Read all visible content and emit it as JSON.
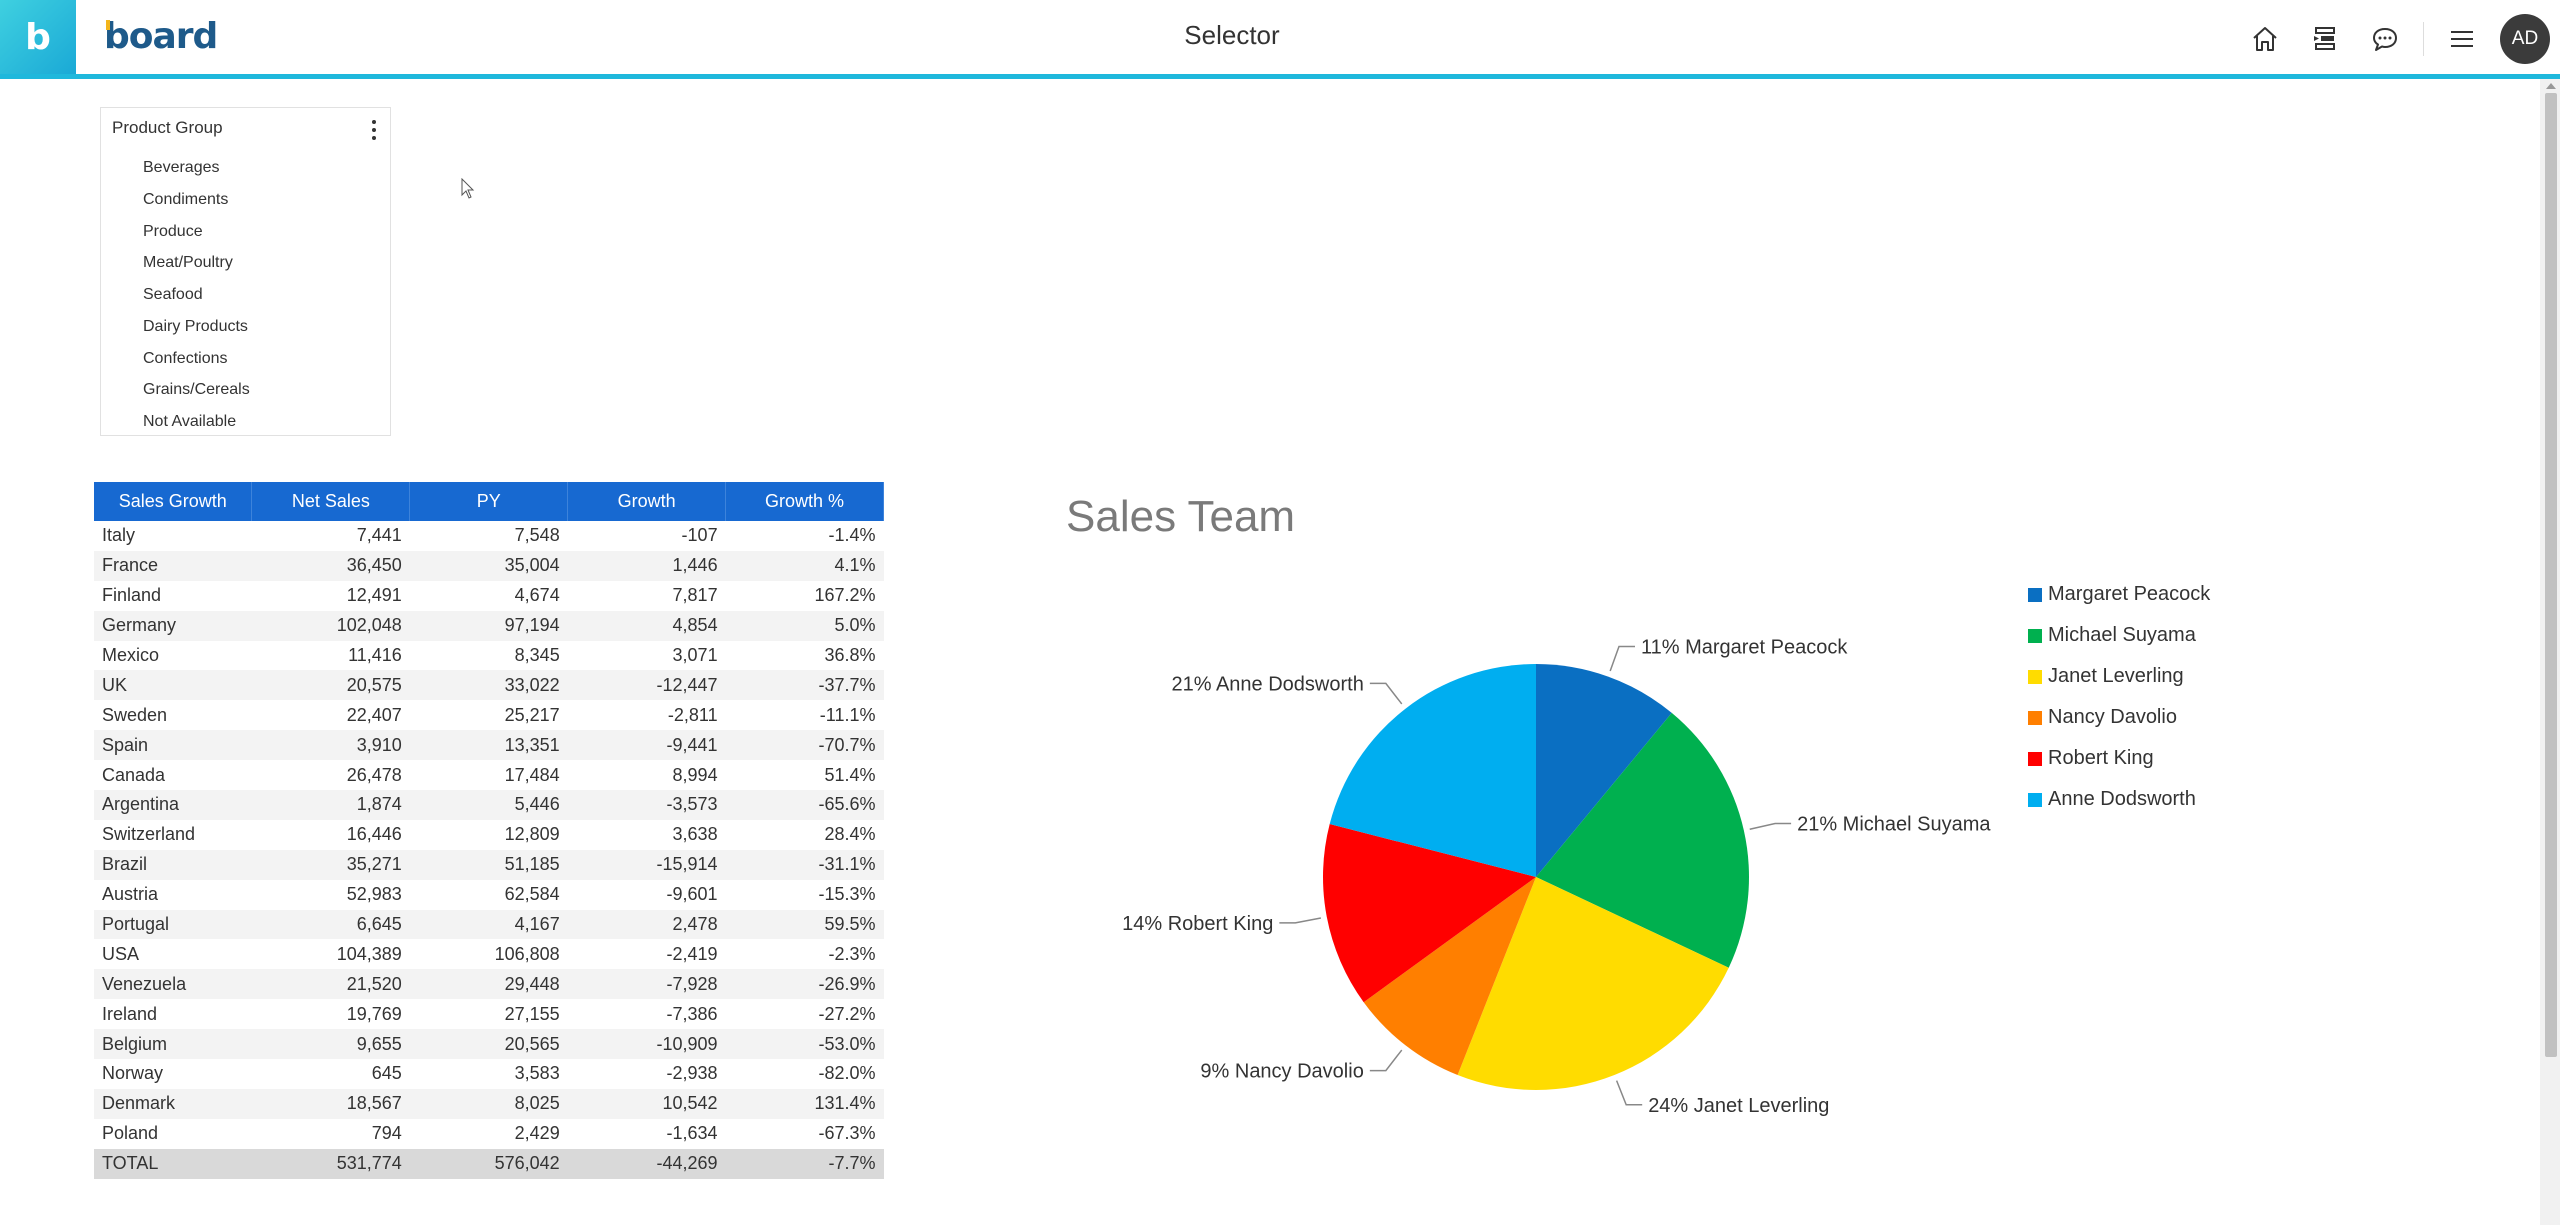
{
  "header": {
    "app_badge": "b",
    "brand": "board",
    "title": "Selector",
    "icons": [
      "home-icon",
      "layout-icon",
      "chat-icon",
      "menu-icon"
    ],
    "avatar_initials": "AD"
  },
  "selector": {
    "title": "Product Group",
    "items": [
      "Beverages",
      "Condiments",
      "Produce",
      "Meat/Poultry",
      "Seafood",
      "Dairy Products",
      "Confections",
      "Grains/Cereals",
      "Not Available"
    ]
  },
  "table": {
    "headers": [
      "Sales Growth",
      "Net Sales",
      "PY",
      "Growth",
      "Growth %"
    ],
    "rows": [
      [
        "Italy",
        "7,441",
        "7,548",
        "-107",
        "-1.4%"
      ],
      [
        "France",
        "36,450",
        "35,004",
        "1,446",
        "4.1%"
      ],
      [
        "Finland",
        "12,491",
        "4,674",
        "7,817",
        "167.2%"
      ],
      [
        "Germany",
        "102,048",
        "97,194",
        "4,854",
        "5.0%"
      ],
      [
        "Mexico",
        "11,416",
        "8,345",
        "3,071",
        "36.8%"
      ],
      [
        "UK",
        "20,575",
        "33,022",
        "-12,447",
        "-37.7%"
      ],
      [
        "Sweden",
        "22,407",
        "25,217",
        "-2,811",
        "-11.1%"
      ],
      [
        "Spain",
        "3,910",
        "13,351",
        "-9,441",
        "-70.7%"
      ],
      [
        "Canada",
        "26,478",
        "17,484",
        "8,994",
        "51.4%"
      ],
      [
        "Argentina",
        "1,874",
        "5,446",
        "-3,573",
        "-65.6%"
      ],
      [
        "Switzerland",
        "16,446",
        "12,809",
        "3,638",
        "28.4%"
      ],
      [
        "Brazil",
        "35,271",
        "51,185",
        "-15,914",
        "-31.1%"
      ],
      [
        "Austria",
        "52,983",
        "62,584",
        "-9,601",
        "-15.3%"
      ],
      [
        "Portugal",
        "6,645",
        "4,167",
        "2,478",
        "59.5%"
      ],
      [
        "USA",
        "104,389",
        "106,808",
        "-2,419",
        "-2.3%"
      ],
      [
        "Venezuela",
        "21,520",
        "29,448",
        "-7,928",
        "-26.9%"
      ],
      [
        "Ireland",
        "19,769",
        "27,155",
        "-7,386",
        "-27.2%"
      ],
      [
        "Belgium",
        "9,655",
        "20,565",
        "-10,909",
        "-53.0%"
      ],
      [
        "Norway",
        "645",
        "3,583",
        "-2,938",
        "-82.0%"
      ],
      [
        "Denmark",
        "18,567",
        "8,025",
        "10,542",
        "131.4%"
      ],
      [
        "Poland",
        "794",
        "2,429",
        "-1,634",
        "-67.3%"
      ]
    ],
    "total": [
      "TOTAL",
      "531,774",
      "576,042",
      "-44,269",
      "-7.7%"
    ]
  },
  "chart_data": {
    "type": "pie",
    "title": "Sales Team",
    "legend_position": "right",
    "slices": [
      {
        "name": "Margaret Peacock",
        "value": 11,
        "label": "11% Margaret Peacock",
        "color": "#0a6fc2"
      },
      {
        "name": "Michael Suyama",
        "value": 21,
        "label": "21% Michael Suyama",
        "color": "#00b04f"
      },
      {
        "name": "Janet Leverling",
        "value": 24,
        "label": "24% Janet Leverling",
        "color": "#ffdc00"
      },
      {
        "name": "Nancy Davolio",
        "value": 9,
        "label": "9% Nancy Davolio",
        "color": "#ff7f00"
      },
      {
        "name": "Robert King",
        "value": 14,
        "label": "14% Robert King",
        "color": "#ff0000"
      },
      {
        "name": "Anne Dodsworth",
        "value": 21,
        "label": "21% Anne Dodsworth",
        "color": "#00aef0"
      }
    ]
  }
}
